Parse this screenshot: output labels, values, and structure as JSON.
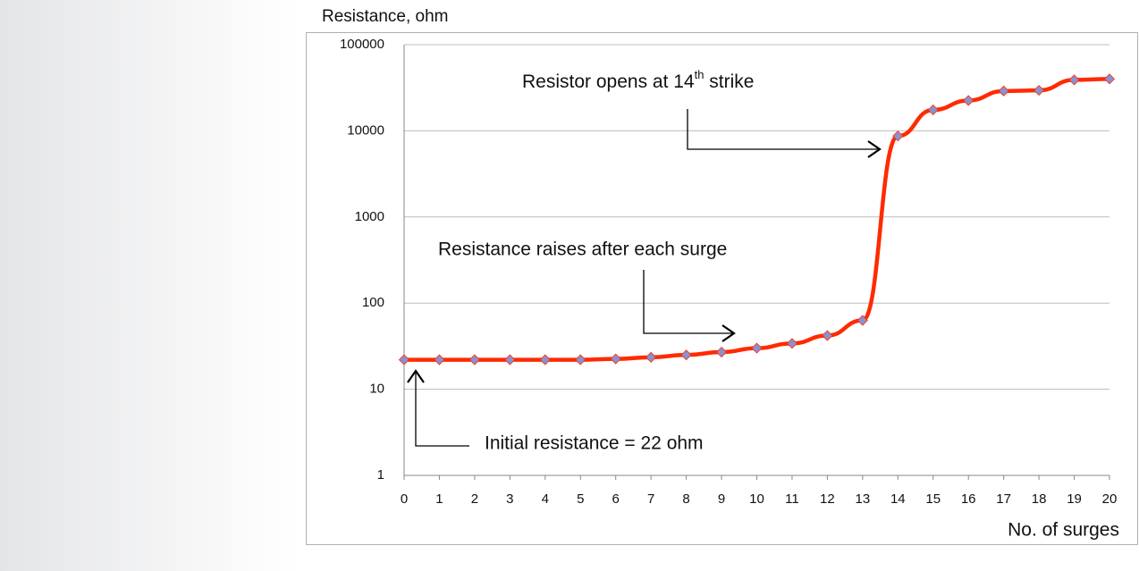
{
  "chart_data": {
    "type": "line",
    "y_label": "Resistance, ohm",
    "x_label": "No. of surges",
    "x": [
      0,
      1,
      2,
      3,
      4,
      5,
      6,
      7,
      8,
      9,
      10,
      11,
      12,
      13,
      14,
      15,
      16,
      17,
      18,
      19,
      20
    ],
    "series": [
      {
        "color": "#ff2a00",
        "marker_color": "#8c8fd0",
        "values": [
          22,
          22,
          22,
          22,
          22,
          22,
          22.5,
          23.5,
          25,
          27,
          30,
          34,
          42,
          63,
          8700,
          17500,
          22500,
          29000,
          29500,
          39000,
          40000
        ]
      }
    ],
    "xlim": [
      0,
      20
    ],
    "xticks": [
      0,
      1,
      2,
      3,
      4,
      5,
      6,
      7,
      8,
      9,
      10,
      11,
      12,
      13,
      14,
      15,
      16,
      17,
      18,
      19,
      20
    ],
    "ylim": [
      1,
      100000
    ],
    "yticks": [
      1,
      10,
      100,
      1000,
      10000,
      100000
    ],
    "log_y": true,
    "grid": true,
    "annotations": [
      {
        "text": "Resistor opens at 14",
        "sup": "th",
        "after": " strike"
      },
      {
        "text": "Resistance raises after each surge"
      },
      {
        "text": "Initial resistance = 22 ohm"
      }
    ]
  }
}
